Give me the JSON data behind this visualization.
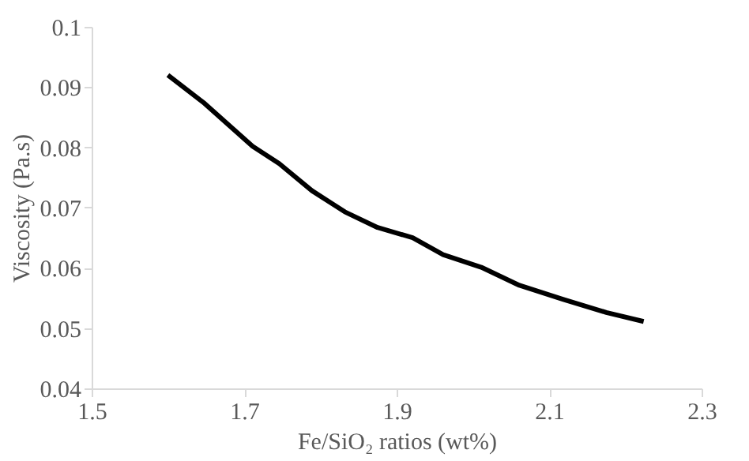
{
  "chart_data": {
    "type": "line",
    "xlabel": "Fe/SiO₂ ratios (wt%)",
    "ylabel": "Viscosity (Pa.s)",
    "x": [
      1.6,
      1.648,
      1.711,
      1.746,
      1.789,
      1.832,
      1.875,
      1.921,
      1.961,
      2.011,
      2.061,
      2.118,
      2.175,
      2.224
    ],
    "series": [
      {
        "color": "#000000",
        "values": [
          0.092,
          0.0873,
          0.0802,
          0.0773,
          0.0728,
          0.0693,
          0.0667,
          0.065,
          0.0622,
          0.0601,
          0.0571,
          0.0548,
          0.0526,
          0.0511
        ]
      }
    ],
    "xlim": [
      1.5,
      2.3
    ],
    "xticks": [
      1.5,
      1.7,
      1.9,
      2.1,
      2.3
    ],
    "ylim": [
      0.04,
      0.1
    ],
    "yticks": [
      0.04,
      0.05,
      0.06,
      0.07,
      0.08,
      0.09,
      0.1
    ],
    "grid": false,
    "marker": "none",
    "line_style": "solid"
  }
}
